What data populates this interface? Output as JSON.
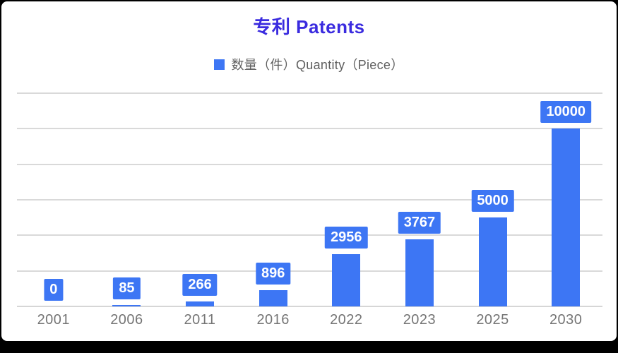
{
  "frame": {
    "background_color": "#000000",
    "card_color": "#ffffff"
  },
  "chart_data": {
    "type": "bar",
    "title": "专利 Patents",
    "title_color": "#3A2BDF",
    "legend": {
      "position": "top",
      "entries": [
        {
          "label": "数量（件）Quantity（Piece）",
          "swatch_color": "#3D76F4"
        }
      ]
    },
    "categories": [
      "2001",
      "2006",
      "2011",
      "2016",
      "2022",
      "2023",
      "2025",
      "2030"
    ],
    "series": [
      {
        "name": "数量（件）Quantity（Piece）",
        "values": [
          0,
          85,
          266,
          896,
          2956,
          3767,
          5000,
          10000
        ]
      }
    ],
    "data_labels": [
      "0",
      "85",
      "266",
      "896",
      "2956",
      "3767",
      "5000",
      "10000"
    ],
    "xlabel": "",
    "ylabel": "",
    "ylim": [
      0,
      12000
    ],
    "gridline_step": 2000,
    "grid": true,
    "y_tick_labels_visible": false,
    "colors": {
      "bar": "#3D76F4",
      "data_label_box": "#3D76F4",
      "data_label_text": "#FFFFFF",
      "gridline": "#D9D9D9",
      "axis_line": "#D6D6D6",
      "x_tick_label": "#757575",
      "legend_text": "#5F5F5F"
    }
  }
}
